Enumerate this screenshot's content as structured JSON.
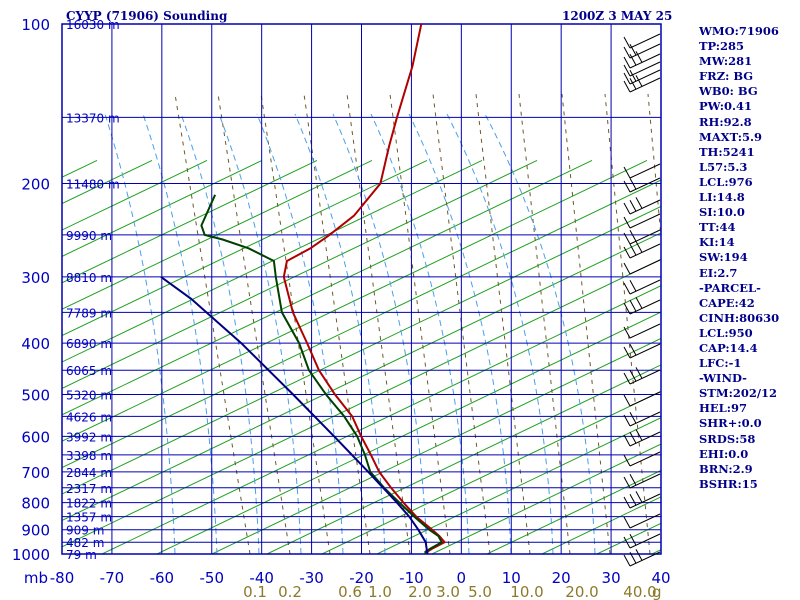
{
  "header": {
    "title": "CYYP (71906) Sounding",
    "datetime": "1200Z  3 MAY 25"
  },
  "indices": [
    "WMO:71906",
    "TP:285",
    "MW:281",
    "FRZ: BG",
    "WB0: BG",
    "PW:0.41",
    "RH:92.8",
    "MAXT:5.9",
    "TH:5241",
    "L57:5.3",
    "LCL:976",
    "LI:14.8",
    "SI:10.0",
    "TT:44",
    "KI:14",
    "SW:194",
    "EI:2.7",
    "-PARCEL-",
    "CAPE:42",
    "CINH:80630",
    "LCL:950",
    "CAP:14.4",
    "LFC:-1",
    "-WIND-",
    "STM:202/12",
    "HEL:97",
    "SHR+:0.0",
    "SRDS:58",
    "EHI:0.0",
    "BRN:2.9",
    "BSHR:15"
  ],
  "chart_data": {
    "type": "line",
    "title": "CYYP (71906) Sounding",
    "subtitle": "1200Z  3 MAY 25",
    "xlabel": "",
    "ylabel": "mb",
    "x_unit_label": "mb",
    "mixing_ratio_unit": "g",
    "xlim": [
      -80,
      40
    ],
    "ylim": [
      1000,
      100
    ],
    "yscale": "log",
    "x_ticks": [
      -80,
      -70,
      -60,
      -50,
      -40,
      -30,
      -20,
      -10,
      0,
      10,
      20,
      30,
      40
    ],
    "x_tick_labels": [
      "-80",
      "-70",
      "-60",
      "-50",
      "-40",
      "-30",
      "-20",
      "-10",
      "0",
      "10",
      "20",
      "30",
      "40"
    ],
    "pressure_ticks": [
      100,
      200,
      300,
      400,
      500,
      600,
      700,
      800,
      900,
      1000
    ],
    "pressure_tick_labels": [
      "100",
      "200",
      "300",
      "400",
      "500",
      "600",
      "700",
      "800",
      "900",
      "1000"
    ],
    "height_labels": [
      {
        "p": 100,
        "label": "16030 m"
      },
      {
        "p": 150,
        "label": "13370 m"
      },
      {
        "p": 200,
        "label": "11480 m"
      },
      {
        "p": 250,
        "label": "9990 m"
      },
      {
        "p": 300,
        "label": "8810 m"
      },
      {
        "p": 350,
        "label": "7789 m"
      },
      {
        "p": 400,
        "label": "6890 m"
      },
      {
        "p": 450,
        "label": "6065 m"
      },
      {
        "p": 500,
        "label": "5320 m"
      },
      {
        "p": 550,
        "label": "4626 m"
      },
      {
        "p": 600,
        "label": "3992 m"
      },
      {
        "p": 650,
        "label": "3398 m"
      },
      {
        "p": 700,
        "label": "2844 m"
      },
      {
        "p": 750,
        "label": "2317 m"
      },
      {
        "p": 800,
        "label": "1822 m"
      },
      {
        "p": 850,
        "label": "1357 m"
      },
      {
        "p": 900,
        "label": "909 m"
      },
      {
        "p": 950,
        "label": "482 m"
      },
      {
        "p": 1000,
        "label": "79 m"
      }
    ],
    "mixing_ratio_labels": [
      "0.1",
      "0.2",
      "0.6",
      "1.0",
      "2.0",
      "3.0",
      "5.0",
      "10.0",
      "20.0",
      "40.0"
    ],
    "series": [
      {
        "color": "#b00000",
        "points": [
          [
            1000,
            -6.8
          ],
          [
            990,
            -7.0
          ],
          [
            975,
            -6.2
          ],
          [
            950,
            -4.4
          ],
          [
            925,
            -6.0
          ],
          [
            900,
            -8.0
          ],
          [
            850,
            -12.4
          ],
          [
            800,
            -16.2
          ],
          [
            750,
            -20.0
          ],
          [
            700,
            -23.8
          ],
          [
            650,
            -27.0
          ],
          [
            600,
            -30.6
          ],
          [
            550,
            -34.2
          ],
          [
            500,
            -39.6
          ],
          [
            450,
            -45.0
          ],
          [
            400,
            -49.8
          ],
          [
            350,
            -55.4
          ],
          [
            300,
            -60.4
          ],
          [
            280,
            -61.2
          ],
          [
            265,
            -57.6
          ],
          [
            250,
            -55.0
          ],
          [
            230,
            -51.8
          ],
          [
            200,
            -49.4
          ],
          [
            170,
            -51.0
          ],
          [
            150,
            -52.0
          ],
          [
            120,
            -53.5
          ],
          [
            100,
            -55.5
          ]
        ]
      },
      {
        "color": "#004000",
        "points": [
          [
            1000,
            -7.2
          ],
          [
            990,
            -7.4
          ],
          [
            975,
            -6.6
          ],
          [
            950,
            -5.0
          ],
          [
            925,
            -6.2
          ],
          [
            900,
            -8.6
          ],
          [
            850,
            -12.8
          ],
          [
            800,
            -17.0
          ],
          [
            750,
            -21.4
          ],
          [
            700,
            -25.6
          ],
          [
            650,
            -28.2
          ],
          [
            600,
            -31.4
          ],
          [
            550,
            -35.8
          ],
          [
            500,
            -41.4
          ],
          [
            450,
            -47.0
          ],
          [
            400,
            -51.4
          ],
          [
            350,
            -57.6
          ],
          [
            300,
            -62.0
          ],
          [
            280,
            -63.8
          ],
          [
            265,
            -70.0
          ],
          [
            255,
            -76.0
          ],
          [
            250,
            -80.0
          ],
          [
            240,
            -81.5
          ],
          [
            210,
            -81.5
          ]
        ]
      },
      {
        "color": "#000080",
        "points": [
          [
            1000,
            -6.8
          ],
          [
            950,
            -8.2
          ],
          [
            900,
            -10.8
          ],
          [
            850,
            -13.8
          ],
          [
            800,
            -17.5
          ],
          [
            700,
            -26.0
          ],
          [
            600,
            -36.0
          ],
          [
            500,
            -48.0
          ],
          [
            400,
            -63.0
          ],
          [
            330,
            -77.0
          ],
          [
            300,
            -85.0
          ]
        ]
      }
    ],
    "grid": true
  }
}
